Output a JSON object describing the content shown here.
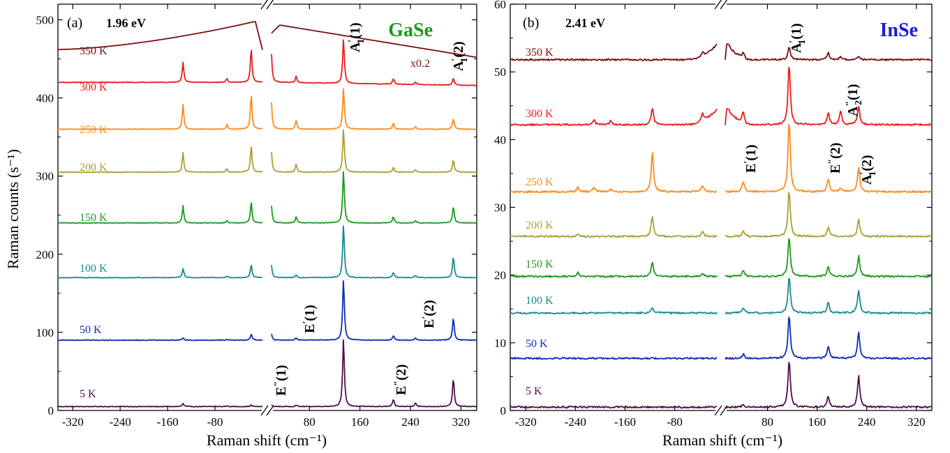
{
  "x_axis_label": "Raman shift (cm⁻¹)",
  "y_axis_label": "Raman counts (s⁻¹)",
  "colors": {
    "5 K": "#4d0d4d",
    "50 K": "#0c2bb8",
    "100 K": "#1a8a8a",
    "150 K": "#1c9a1c",
    "200 K": "#a8a030",
    "250 K": "#ff8a1a",
    "300 K": "#ee1a1a",
    "350 K": "#7a0e0e",
    "GaSe": "#1a9a1a",
    "InSe": "#1a1ae0"
  },
  "chart_data": [
    {
      "type": "line",
      "panel": "(a)",
      "excitation": "1.96 eV",
      "material": "GaSe",
      "ylim": [
        0,
        520
      ],
      "yticks": [
        "0",
        "100",
        "200",
        "300",
        "400",
        "500"
      ],
      "xticks": [
        "-320",
        "-240",
        "-160",
        "-80",
        "80",
        "160",
        "240",
        "320"
      ],
      "x_break": true,
      "x_segments": [
        [
          -345,
          0
        ],
        [
          20,
          345
        ]
      ],
      "scale_note": "x0.2",
      "series": [
        {
          "name": "5 K",
          "baseline": 5,
          "slope_left": 0,
          "slope_right": 0,
          "peaks": [
            [
              -134,
              4
            ],
            [
              -60,
              1
            ],
            [
              -19,
              2
            ],
            [
              19,
              3
            ],
            [
              59,
              2
            ],
            [
              134,
              87
            ],
            [
              213,
              9
            ],
            [
              248,
              5
            ],
            [
              308,
              36
            ]
          ]
        },
        {
          "name": "50 K",
          "baseline": 90,
          "slope_left": 0,
          "slope_right": 0,
          "peaks": [
            [
              -134,
              3
            ],
            [
              -60,
              1
            ],
            [
              -19,
              8
            ],
            [
              19,
              11
            ],
            [
              59,
              3
            ],
            [
              134,
              78
            ],
            [
              213,
              6
            ],
            [
              248,
              3
            ],
            [
              308,
              29
            ]
          ]
        },
        {
          "name": "100 K",
          "baseline": 170,
          "slope_left": 0,
          "slope_right": 0,
          "peaks": [
            [
              -134,
              12
            ],
            [
              -60,
              2
            ],
            [
              -19,
              17
            ],
            [
              19,
              22
            ],
            [
              59,
              3
            ],
            [
              134,
              68
            ],
            [
              213,
              7
            ],
            [
              248,
              3
            ],
            [
              308,
              27
            ]
          ]
        },
        {
          "name": "150 K",
          "baseline": 240,
          "slope_left": 0,
          "slope_right": 0,
          "peaks": [
            [
              -134,
              22
            ],
            [
              -60,
              3
            ],
            [
              -19,
              27
            ],
            [
              19,
              30
            ],
            [
              59,
              8
            ],
            [
              134,
              67
            ],
            [
              213,
              8
            ],
            [
              248,
              3
            ],
            [
              308,
              21
            ]
          ]
        },
        {
          "name": "200 K",
          "baseline": 305,
          "slope_left": 0,
          "slope_right": 0,
          "peaks": [
            [
              -134,
              25
            ],
            [
              -60,
              4
            ],
            [
              -19,
              34
            ],
            [
              19,
              36
            ],
            [
              59,
              10
            ],
            [
              134,
              55
            ],
            [
              213,
              6
            ],
            [
              248,
              3
            ],
            [
              308,
              16
            ]
          ]
        },
        {
          "name": "250 K",
          "baseline": 360,
          "slope_left": 0,
          "slope_right": 0,
          "peaks": [
            [
              -134,
              32
            ],
            [
              -60,
              6
            ],
            [
              -19,
              45
            ],
            [
              19,
              48
            ],
            [
              59,
              11
            ],
            [
              134,
              53
            ],
            [
              213,
              8
            ],
            [
              248,
              3
            ],
            [
              308,
              14
            ]
          ]
        },
        {
          "name": "300 K",
          "baseline": 420,
          "slope_left": 0,
          "slope_right": -4,
          "peaks": [
            [
              -134,
              26
            ],
            [
              -60,
              5
            ],
            [
              -19,
              44
            ],
            [
              19,
              50
            ],
            [
              59,
              8
            ],
            [
              134,
              57
            ],
            [
              213,
              7
            ],
            [
              248,
              3
            ],
            [
              308,
              9
            ]
          ]
        },
        {
          "name": "350 K",
          "baseline": 462,
          "broad": true,
          "peaks": []
        }
      ],
      "mode_labels": [
        {
          "mode": "A'1(1)"
        },
        {
          "mode": "A'1(2)"
        },
        {
          "mode": "E'(1)"
        },
        {
          "mode": "E'(2)"
        },
        {
          "mode": "E\"(1)"
        },
        {
          "mode": "E\"(2)"
        }
      ],
      "temperature_labels": [
        "350 K",
        "300 K",
        "250 K",
        "200 K",
        "150 K",
        "100 K",
        "50 K",
        "5 K"
      ]
    },
    {
      "type": "line",
      "panel": "(b)",
      "excitation": "2.41 eV",
      "material": "InSe",
      "ylim": [
        0,
        60
      ],
      "yticks": [
        "0",
        "10",
        "20",
        "30",
        "40",
        "50",
        "60"
      ],
      "xticks": [
        "-320",
        "-240",
        "-160",
        "-80",
        "80",
        "160",
        "240",
        "320"
      ],
      "x_break": true,
      "x_segments": [
        [
          -345,
          -12
        ],
        [
          12,
          345
        ]
      ],
      "series": [
        {
          "name": "5 K",
          "baseline": 0.5,
          "peaks": [
            [
              41,
              0.3
            ],
            [
              115,
              7.0
            ],
            [
              178,
              1.6
            ],
            [
              227,
              4.6
            ]
          ]
        },
        {
          "name": "50 K",
          "baseline": 7.7,
          "peaks": [
            [
              41,
              0.6
            ],
            [
              115,
              6.5
            ],
            [
              178,
              1.8
            ],
            [
              227,
              3.9
            ]
          ]
        },
        {
          "name": "100 K",
          "baseline": 14.4,
          "peaks": [
            [
              -116,
              0.8
            ],
            [
              41,
              0.8
            ],
            [
              115,
              5.5
            ],
            [
              178,
              1.5
            ],
            [
              227,
              3.4
            ]
          ]
        },
        {
          "name": "150 K",
          "baseline": 19.8,
          "peaks": [
            [
              -236,
              0.6
            ],
            [
              -116,
              2.0
            ],
            [
              -35,
              0.5
            ],
            [
              41,
              0.9
            ],
            [
              115,
              5.8
            ],
            [
              178,
              1.5
            ],
            [
              227,
              3.0
            ]
          ]
        },
        {
          "name": "200 K",
          "baseline": 25.7,
          "peaks": [
            [
              -236,
              0.4
            ],
            [
              -116,
              3.0
            ],
            [
              -35,
              0.7
            ],
            [
              41,
              0.9
            ],
            [
              115,
              6.8
            ],
            [
              178,
              1.4
            ],
            [
              227,
              2.5
            ]
          ]
        },
        {
          "name": "250 K",
          "baseline": 32.3,
          "peaks": [
            [
              -236,
              0.7
            ],
            [
              -210,
              0.6
            ],
            [
              -183,
              0.4
            ],
            [
              -116,
              5.8
            ],
            [
              -35,
              0.9
            ],
            [
              41,
              1.5
            ],
            [
              115,
              10.5
            ],
            [
              178,
              1.9
            ],
            [
              198,
              0.5
            ],
            [
              227,
              3.6
            ]
          ]
        },
        {
          "name": "300 K",
          "baseline": 42.2,
          "edge_bump": true,
          "peaks": [
            [
              -210,
              0.7
            ],
            [
              -183,
              0.6
            ],
            [
              -116,
              2.5
            ],
            [
              -35,
              1.1
            ],
            [
              41,
              1.5
            ],
            [
              115,
              9.0
            ],
            [
              178,
              1.8
            ],
            [
              198,
              2.0
            ],
            [
              227,
              2.8
            ]
          ]
        },
        {
          "name": "350 K",
          "baseline": 51.8,
          "edge_bump": true,
          "peaks": [
            [
              -35,
              0.6
            ],
            [
              41,
              0.6
            ],
            [
              115,
              2.0
            ],
            [
              178,
              1.0
            ],
            [
              198,
              0.5
            ],
            [
              227,
              0.4
            ]
          ]
        }
      ],
      "mode_labels": [
        {
          "mode": "A'1(1)"
        },
        {
          "mode": "A\"2(1)"
        },
        {
          "mode": "E'(1)"
        },
        {
          "mode": "E\"(2)"
        },
        {
          "mode": "A'1(2)"
        }
      ],
      "temperature_labels": [
        "350 K",
        "300 K",
        "250 K",
        "200 K",
        "150 K",
        "100 K",
        "50 K",
        "5 K"
      ]
    }
  ]
}
